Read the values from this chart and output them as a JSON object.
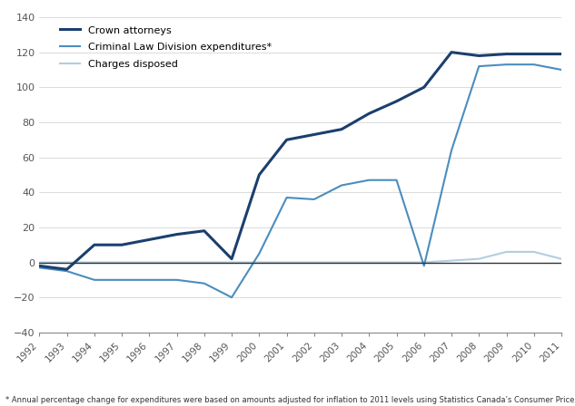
{
  "years": [
    1992,
    1993,
    1994,
    1995,
    1996,
    1997,
    1998,
    1999,
    2000,
    2001,
    2002,
    2003,
    2004,
    2005,
    2006,
    2007,
    2008,
    2009,
    2010,
    2011
  ],
  "crown_attorneys": [
    -2,
    -4,
    10,
    10,
    13,
    16,
    18,
    2,
    50,
    70,
    73,
    76,
    85,
    92,
    100,
    120,
    118,
    119,
    119,
    119
  ],
  "criminal_law_expenditures": [
    -3,
    -5,
    -10,
    -10,
    -10,
    -10,
    -12,
    -20,
    5,
    37,
    36,
    44,
    47,
    47,
    -2,
    64,
    112,
    113,
    113,
    110
  ],
  "charges_disposed": [
    0,
    0,
    0,
    0,
    0,
    0,
    0,
    0,
    0,
    0,
    0,
    0,
    0,
    0,
    0,
    1,
    2,
    6,
    6,
    2
  ],
  "crown_color": "#1b3f6e",
  "expenditures_color": "#4a8dbf",
  "charges_color": "#b0cfe0",
  "legend_labels": [
    "Crown attorneys",
    "Criminal Law Division expenditures*",
    "Charges disposed"
  ],
  "footnote": "* Annual percentage change for expenditures were based on amounts adjusted for inflation to 2011 levels using Statistics Canada’s Consumer Price Index.",
  "ylim": [
    -40,
    140
  ],
  "yticks": [
    -40,
    -20,
    0,
    20,
    40,
    60,
    80,
    100,
    120,
    140
  ],
  "background_color": "#ffffff",
  "crown_linewidth": 2.2,
  "expenditures_linewidth": 1.5,
  "charges_linewidth": 1.5
}
